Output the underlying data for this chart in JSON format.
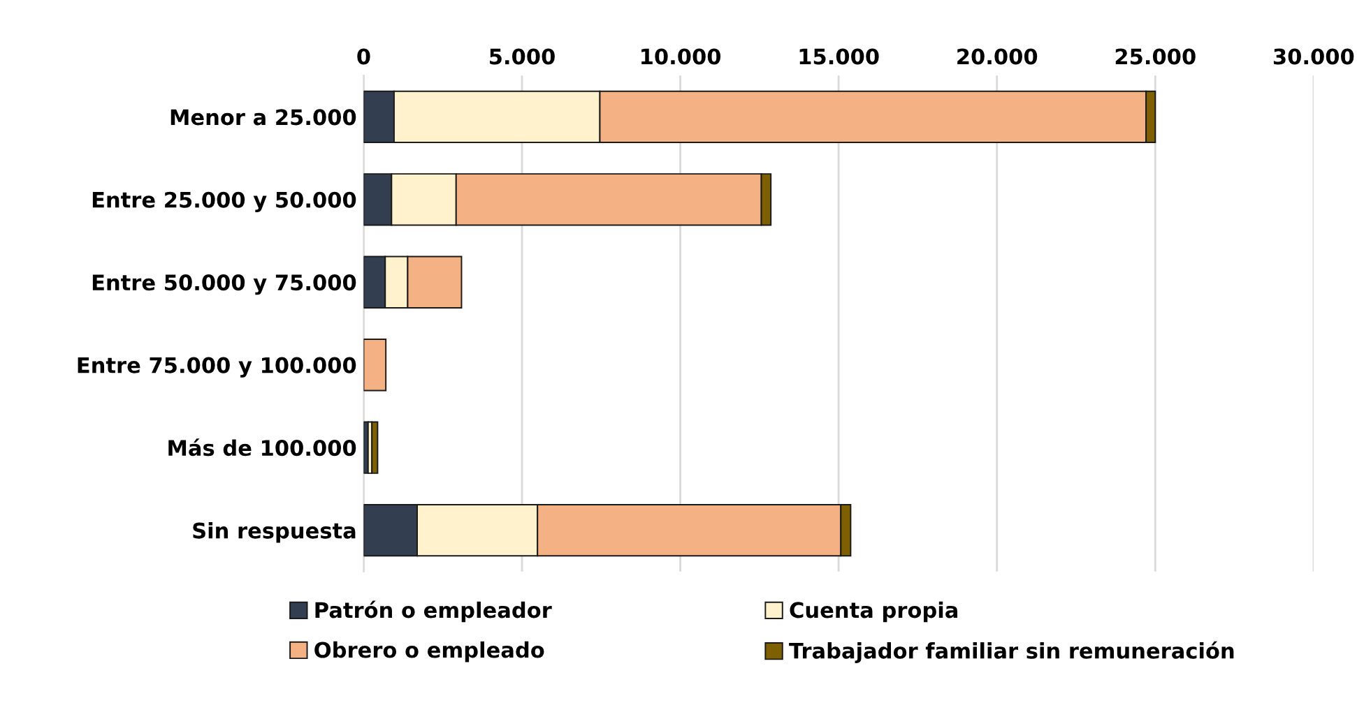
{
  "chart_data": {
    "type": "bar",
    "orientation": "horizontal",
    "stacked": true,
    "categories": [
      "Menor a 25.000",
      "Entre 25.000 y 50.000",
      "Entre 50.000 y 75.000",
      "Entre 75.000 y 100.000",
      "Más de 100.000",
      "Sin respuesta"
    ],
    "series": [
      {
        "name": "Patrón o empleador",
        "color": "#333f50",
        "values": [
          960,
          880,
          680,
          0,
          140,
          1690
        ]
      },
      {
        "name": "Cuenta propia",
        "color": "#fff2cc",
        "values": [
          6500,
          2040,
          710,
          0,
          120,
          3800
        ]
      },
      {
        "name": "Obrero o empleado",
        "color": "#f4b183",
        "values": [
          17250,
          9640,
          1700,
          700,
          0,
          9580
        ]
      },
      {
        "name": "Trabajador familiar sin remuneración",
        "color": "#7f6000",
        "values": [
          290,
          300,
          0,
          0,
          180,
          310
        ]
      }
    ],
    "xlim": [
      0,
      30000
    ],
    "xticks": [
      {
        "value": 0,
        "label": "0"
      },
      {
        "value": 5000,
        "label": "5.000"
      },
      {
        "value": 10000,
        "label": "10.000"
      },
      {
        "value": 15000,
        "label": "15.000"
      },
      {
        "value": 20000,
        "label": "20.000"
      },
      {
        "value": 25000,
        "label": "25.000"
      },
      {
        "value": 30000,
        "label": "30.000"
      }
    ],
    "grid": "x",
    "legend": "bottom"
  }
}
